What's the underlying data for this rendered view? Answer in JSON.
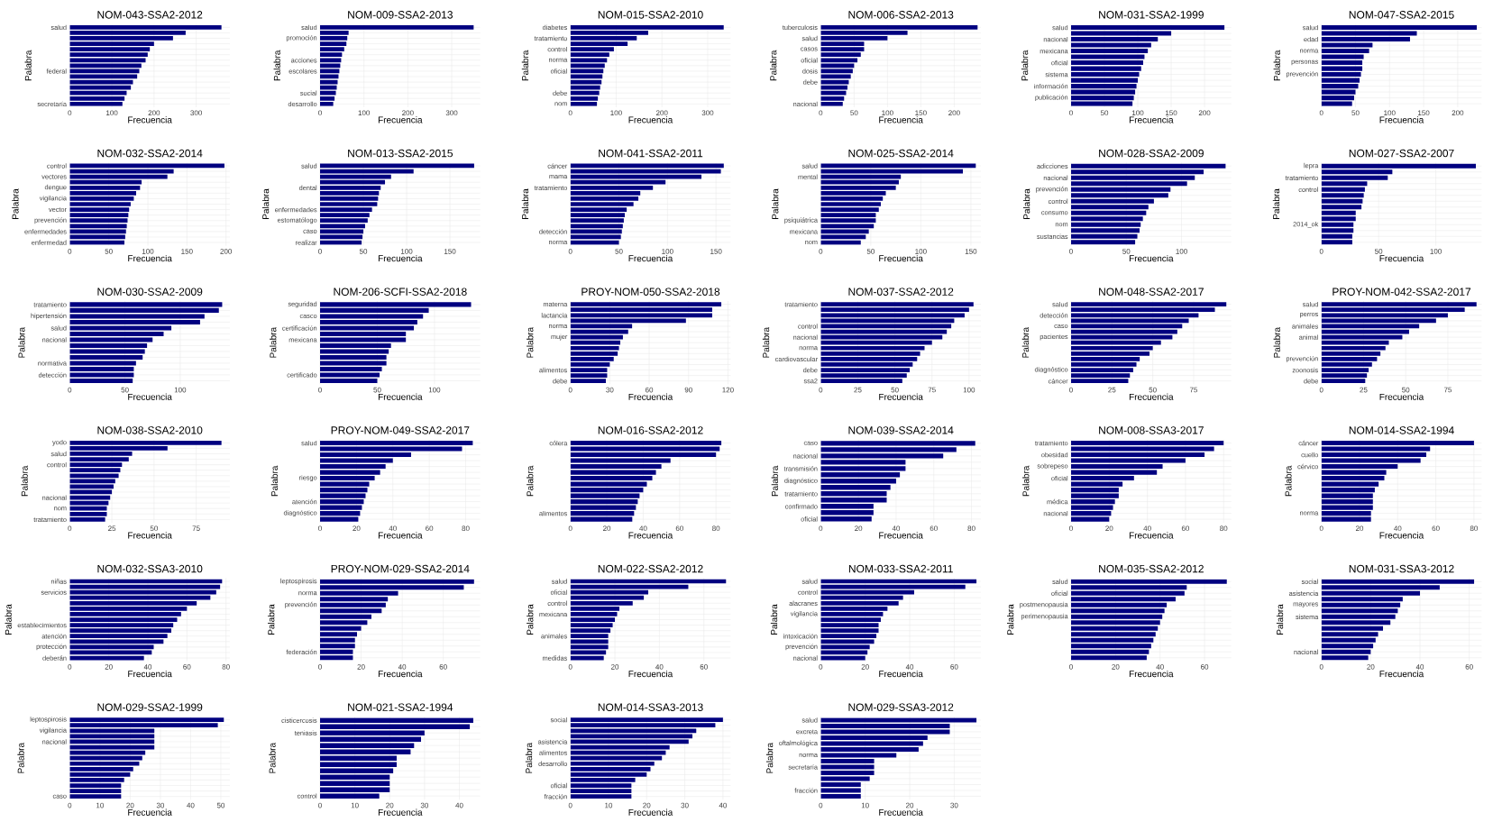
{
  "chart_data": [
    {
      "type": "bar",
      "orientation": "horizontal",
      "title": "NOM-043-SSA2-2012",
      "xlabel": "Frecuencia",
      "ylabel": "Palabra",
      "color": "#000080",
      "grid": true,
      "xlim": [
        0,
        380
      ],
      "xticks": [
        0,
        100,
        200,
        300
      ],
      "categories": [
        "salud",
        null,
        null,
        null,
        null,
        null,
        null,
        null,
        "federal",
        null,
        null,
        null,
        null,
        null,
        "secretaría"
      ],
      "values": [
        360,
        275,
        245,
        200,
        190,
        185,
        180,
        170,
        165,
        160,
        150,
        145,
        135,
        130,
        125
      ]
    },
    {
      "type": "bar",
      "orientation": "horizontal",
      "title": "NOM-009-SSA2-2013",
      "xlabel": "Frecuencia",
      "ylabel": "Palabra",
      "color": "#000080",
      "grid": true,
      "xlim": [
        0,
        365
      ],
      "xticks": [
        0,
        100,
        200,
        300
      ],
      "categories": [
        "salud",
        null,
        "promoción",
        null,
        null,
        null,
        "acciones",
        null,
        "escolares",
        null,
        null,
        null,
        "social",
        null,
        "desarrollo"
      ],
      "values": [
        350,
        65,
        62,
        60,
        55,
        50,
        48,
        46,
        44,
        42,
        40,
        38,
        36,
        33,
        30
      ]
    },
    {
      "type": "bar",
      "orientation": "horizontal",
      "title": "NOM-015-SSA2-2010",
      "xlabel": "Frecuencia",
      "ylabel": "Palabra",
      "color": "#000080",
      "grid": true,
      "xlim": [
        0,
        350
      ],
      "xticks": [
        0,
        100,
        200,
        300
      ],
      "categories": [
        "diabetes",
        null,
        "tratamiento",
        null,
        "control",
        null,
        "norma",
        null,
        "oficial",
        null,
        null,
        null,
        "debe",
        null,
        "nom"
      ],
      "values": [
        335,
        170,
        145,
        125,
        95,
        85,
        80,
        75,
        72,
        70,
        68,
        65,
        63,
        60,
        58
      ]
    },
    {
      "type": "bar",
      "orientation": "horizontal",
      "title": "NOM-006-SSA2-2013",
      "xlabel": "Frecuencia",
      "ylabel": "Palabra",
      "color": "#000080",
      "grid": true,
      "xlim": [
        0,
        240
      ],
      "xticks": [
        0,
        50,
        100,
        150,
        200
      ],
      "categories": [
        "tuberculosis",
        null,
        "salud",
        null,
        "casos",
        null,
        "oficial",
        null,
        "dosis",
        null,
        "debe",
        null,
        null,
        null,
        "nacional"
      ],
      "values": [
        235,
        130,
        100,
        65,
        65,
        60,
        55,
        50,
        48,
        45,
        42,
        40,
        38,
        35,
        33
      ]
    },
    {
      "type": "bar",
      "orientation": "horizontal",
      "title": "NOM-031-SSA2-1999",
      "xlabel": "Frecuencia",
      "ylabel": "Palabra",
      "color": "#000080",
      "grid": true,
      "xlim": [
        0,
        240
      ],
      "xticks": [
        0,
        50,
        100,
        150,
        200
      ],
      "categories": [
        "salud",
        null,
        "nacional",
        null,
        "mexicana",
        null,
        "oficial",
        null,
        "sistema",
        null,
        "información",
        null,
        "publicación",
        null
      ],
      "values": [
        230,
        150,
        130,
        120,
        115,
        110,
        108,
        105,
        102,
        100,
        98,
        96,
        94,
        92
      ]
    },
    {
      "type": "bar",
      "orientation": "horizontal",
      "title": "NOM-047-SSA2-2015",
      "xlabel": "Frecuencia",
      "ylabel": "Palabra",
      "color": "#000080",
      "grid": true,
      "xlim": [
        0,
        235
      ],
      "xticks": [
        0,
        50,
        100,
        150,
        200
      ],
      "categories": [
        "salud",
        null,
        "edad",
        null,
        "norma",
        null,
        "personas",
        null,
        "prevención",
        null,
        null,
        null,
        null,
        null
      ],
      "values": [
        228,
        140,
        130,
        75,
        70,
        62,
        60,
        60,
        58,
        56,
        54,
        50,
        48,
        45
      ]
    },
    {
      "type": "bar",
      "orientation": "horizontal",
      "title": "NOM-032-SSA2-2014",
      "xlabel": "Frecuencia",
      "ylabel": "Palabra",
      "color": "#000080",
      "grid": true,
      "xlim": [
        0,
        205
      ],
      "xticks": [
        0,
        50,
        100,
        150,
        200
      ],
      "categories": [
        "control",
        null,
        "vectores",
        null,
        "dengue",
        null,
        "vigilancia",
        null,
        "vector",
        null,
        "prevención",
        null,
        "enfermedades",
        null,
        "enfermedad"
      ],
      "values": [
        198,
        133,
        125,
        92,
        90,
        85,
        82,
        78,
        76,
        75,
        74,
        73,
        72,
        71,
        70
      ]
    },
    {
      "type": "bar",
      "orientation": "horizontal",
      "title": "NOM-013-SSA2-2015",
      "xlabel": "Frecuencia",
      "ylabel": "Palabra",
      "color": "#000080",
      "grid": true,
      "xlim": [
        0,
        185
      ],
      "xticks": [
        0,
        50,
        100,
        150
      ],
      "categories": [
        "salud",
        null,
        null,
        null,
        "dental",
        null,
        null,
        null,
        "enfermedades",
        null,
        "estomatólogo",
        null,
        "caso",
        null,
        "realizar"
      ],
      "values": [
        178,
        108,
        82,
        75,
        70,
        68,
        67,
        66,
        60,
        57,
        55,
        52,
        50,
        49,
        48
      ]
    },
    {
      "type": "bar",
      "orientation": "horizontal",
      "title": "NOM-041-SSA2-2011",
      "xlabel": "Frecuencia",
      "ylabel": "Palabra",
      "color": "#000080",
      "grid": true,
      "xlim": [
        0,
        165
      ],
      "xticks": [
        0,
        50,
        100,
        150
      ],
      "categories": [
        "cáncer",
        null,
        "mama",
        null,
        "tratamiento",
        null,
        null,
        null,
        null,
        null,
        null,
        null,
        "detección",
        null,
        "norma"
      ],
      "values": [
        158,
        155,
        135,
        98,
        85,
        72,
        70,
        65,
        58,
        56,
        55,
        54,
        53,
        52,
        50
      ]
    },
    {
      "type": "bar",
      "orientation": "horizontal",
      "title": "NOM-025-SSA2-2014",
      "xlabel": "Frecuencia",
      "ylabel": "Palabra",
      "color": "#000080",
      "grid": true,
      "xlim": [
        0,
        160
      ],
      "xticks": [
        0,
        50,
        100,
        150
      ],
      "categories": [
        "salud",
        null,
        "mental",
        null,
        null,
        null,
        null,
        null,
        null,
        null,
        "psiquiátrica",
        null,
        "mexicana",
        null,
        "nom"
      ],
      "values": [
        155,
        142,
        80,
        78,
        75,
        65,
        62,
        60,
        58,
        55,
        55,
        53,
        48,
        45,
        40
      ]
    },
    {
      "type": "bar",
      "orientation": "horizontal",
      "title": "NOM-028-SSA2-2009",
      "xlabel": "Frecuencia",
      "ylabel": "Palabra",
      "color": "#000080",
      "grid": true,
      "xlim": [
        0,
        145
      ],
      "xticks": [
        0,
        50,
        100
      ],
      "categories": [
        "adicciones",
        null,
        "nacional",
        null,
        "prevención",
        null,
        "control",
        null,
        "consumo",
        null,
        "nom",
        null,
        "sustancias",
        null
      ],
      "values": [
        140,
        120,
        112,
        105,
        90,
        88,
        75,
        70,
        68,
        65,
        63,
        62,
        60,
        58
      ]
    },
    {
      "type": "bar",
      "orientation": "horizontal",
      "title": "NOM-027-SSA2-2007",
      "xlabel": "Frecuencia",
      "ylabel": "Palabra",
      "color": "#000080",
      "grid": true,
      "xlim": [
        0,
        140
      ],
      "xticks": [
        0,
        50,
        100
      ],
      "categories": [
        "lepra",
        null,
        "tratamiento",
        null,
        "control",
        null,
        null,
        null,
        null,
        null,
        "2014_ok",
        null,
        null,
        null
      ],
      "values": [
        135,
        62,
        58,
        40,
        38,
        37,
        36,
        35,
        30,
        30,
        28,
        28,
        27,
        27
      ]
    },
    {
      "type": "bar",
      "orientation": "horizontal",
      "title": "NOM-030-SSA2-2009",
      "xlabel": "Frecuencia",
      "ylabel": "Palabra",
      "color": "#000080",
      "grid": true,
      "xlim": [
        0,
        145
      ],
      "xticks": [
        0,
        50,
        100
      ],
      "categories": [
        "tratamiento",
        null,
        "hipertensión",
        null,
        "salud",
        null,
        "nacional",
        null,
        null,
        null,
        "normativa",
        null,
        "detección",
        null
      ],
      "values": [
        138,
        135,
        122,
        118,
        92,
        85,
        75,
        70,
        68,
        66,
        60,
        58,
        58,
        57
      ]
    },
    {
      "type": "bar",
      "orientation": "horizontal",
      "title": "NOM-206-SCFI-SSA2-2018",
      "xlabel": "Frecuencia",
      "ylabel": "Palabra",
      "color": "#000080",
      "grid": true,
      "xlim": [
        0,
        140
      ],
      "xticks": [
        0,
        50,
        100
      ],
      "categories": [
        "seguridad",
        null,
        "casco",
        null,
        "certificación",
        null,
        "mexicana",
        null,
        null,
        null,
        null,
        null,
        "certificado",
        null
      ],
      "values": [
        132,
        95,
        90,
        85,
        82,
        75,
        75,
        62,
        60,
        58,
        58,
        54,
        52,
        50
      ]
    },
    {
      "type": "bar",
      "orientation": "horizontal",
      "title": "PROY-NOM-050-SSA2-2018",
      "xlabel": "Frecuencia",
      "ylabel": "Palabra",
      "color": "#000080",
      "grid": true,
      "xlim": [
        0,
        122
      ],
      "xticks": [
        0,
        30,
        60,
        90,
        120
      ],
      "categories": [
        "materna",
        null,
        "lactancia",
        null,
        "norma",
        null,
        "mujer",
        null,
        null,
        null,
        null,
        null,
        "alimentos",
        null,
        "debe"
      ],
      "values": [
        115,
        108,
        108,
        88,
        47,
        44,
        40,
        38,
        37,
        36,
        33,
        30,
        28,
        28,
        27
      ]
    },
    {
      "type": "bar",
      "orientation": "horizontal",
      "title": "NOM-037-SSA2-2012",
      "xlabel": "Frecuencia",
      "ylabel": "Palabra",
      "color": "#000080",
      "grid": true,
      "xlim": [
        0,
        108
      ],
      "xticks": [
        0,
        25,
        50,
        75,
        100
      ],
      "categories": [
        "tratamiento",
        null,
        null,
        null,
        "control",
        null,
        "nacional",
        null,
        "norma",
        null,
        "cardiovascular",
        null,
        "debe",
        null,
        "ssa2"
      ],
      "values": [
        103,
        100,
        97,
        90,
        88,
        85,
        82,
        75,
        70,
        67,
        65,
        62,
        60,
        58,
        55
      ]
    },
    {
      "type": "bar",
      "orientation": "horizontal",
      "title": "NOM-048-SSA2-2017",
      "xlabel": "Frecuencia",
      "ylabel": "Palabra",
      "color": "#000080",
      "grid": true,
      "xlim": [
        0,
        98
      ],
      "xticks": [
        0,
        25,
        50,
        75
      ],
      "categories": [
        "salud",
        null,
        "detección",
        null,
        "caso",
        null,
        "pacientes",
        null,
        null,
        null,
        null,
        null,
        "diagnóstico",
        null,
        "cáncer"
      ],
      "values": [
        95,
        88,
        78,
        72,
        68,
        65,
        62,
        55,
        50,
        48,
        42,
        40,
        38,
        36,
        35
      ]
    },
    {
      "type": "bar",
      "orientation": "horizontal",
      "title": "PROY-NOM-042-SSA2-2017",
      "xlabel": "Frecuencia",
      "ylabel": "Palabra",
      "color": "#000080",
      "grid": true,
      "xlim": [
        0,
        95
      ],
      "xticks": [
        0,
        25,
        50,
        75
      ],
      "categories": [
        "salud",
        null,
        "perros",
        null,
        "animales",
        null,
        "animal",
        null,
        null,
        null,
        "prevención",
        null,
        "zoonosis",
        null,
        "debe"
      ],
      "values": [
        92,
        85,
        75,
        68,
        58,
        52,
        48,
        40,
        38,
        35,
        33,
        30,
        28,
        27,
        26
      ]
    },
    {
      "type": "bar",
      "orientation": "horizontal",
      "title": "NOM-038-SSA2-2010",
      "xlabel": "Frecuencia",
      "ylabel": "Palabra",
      "color": "#000080",
      "grid": true,
      "xlim": [
        0,
        95
      ],
      "xticks": [
        0,
        25,
        50,
        75
      ],
      "categories": [
        "yodo",
        null,
        "salud",
        null,
        "control",
        null,
        null,
        null,
        null,
        null,
        "nacional",
        null,
        "nom",
        null,
        "tratamiento"
      ],
      "values": [
        90,
        58,
        37,
        35,
        31,
        30,
        29,
        27,
        26,
        25,
        24,
        23,
        22,
        22,
        21
      ]
    },
    {
      "type": "bar",
      "orientation": "horizontal",
      "title": "PROY-NOM-049-SSA2-2017",
      "xlabel": "Frecuencia",
      "ylabel": "Palabra",
      "color": "#000080",
      "grid": true,
      "xlim": [
        0,
        88
      ],
      "xticks": [
        0,
        20,
        40,
        60,
        80
      ],
      "categories": [
        "salud",
        null,
        null,
        null,
        null,
        null,
        "riesgo",
        null,
        null,
        null,
        "atención",
        null,
        "diagnóstico",
        null
      ],
      "values": [
        84,
        78,
        50,
        40,
        36,
        33,
        30,
        27,
        26,
        25,
        24,
        23,
        22,
        21
      ]
    },
    {
      "type": "bar",
      "orientation": "horizontal",
      "title": "NOM-016-SSA2-2012",
      "xlabel": "Frecuencia",
      "ylabel": "Palabra",
      "color": "#000080",
      "grid": true,
      "xlim": [
        0,
        88
      ],
      "xticks": [
        0,
        20,
        40,
        60,
        80
      ],
      "categories": [
        "cólera",
        null,
        null,
        null,
        null,
        null,
        null,
        null,
        null,
        null,
        null,
        null,
        "alimentos",
        null
      ],
      "values": [
        83,
        82,
        80,
        55,
        50,
        47,
        45,
        42,
        40,
        38,
        37,
        36,
        35,
        34
      ]
    },
    {
      "type": "bar",
      "orientation": "horizontal",
      "title": "NOM-039-SSA2-2014",
      "xlabel": "Frecuencia",
      "ylabel": "Palabra",
      "color": "#000080",
      "grid": true,
      "xlim": [
        0,
        85
      ],
      "xticks": [
        0,
        20,
        40,
        60,
        80
      ],
      "categories": [
        "caso",
        null,
        "nacional",
        null,
        "transmisión",
        null,
        "diagnóstico",
        null,
        "tratamiento",
        null,
        "confirmado",
        null,
        "oficial"
      ],
      "values": [
        82,
        72,
        65,
        45,
        45,
        42,
        40,
        37,
        35,
        35,
        28,
        28,
        27
      ]
    },
    {
      "type": "bar",
      "orientation": "horizontal",
      "title": "NOM-008-SSA3-2017",
      "xlabel": "Frecuencia",
      "ylabel": "Palabra",
      "color": "#000080",
      "grid": true,
      "xlim": [
        0,
        84
      ],
      "xticks": [
        0,
        20,
        40,
        60,
        80
      ],
      "categories": [
        "tratamiento",
        null,
        "obesidad",
        null,
        "sobrepeso",
        null,
        "oficial",
        null,
        null,
        null,
        "médica",
        null,
        "nacional",
        null
      ],
      "values": [
        80,
        75,
        70,
        60,
        48,
        45,
        33,
        27,
        25,
        25,
        23,
        22,
        21,
        20
      ]
    },
    {
      "type": "bar",
      "orientation": "horizontal",
      "title": "NOM-014-SSA2-1994",
      "xlabel": "Frecuencia",
      "ylabel": "Palabra",
      "color": "#000080",
      "grid": true,
      "xlim": [
        0,
        84
      ],
      "xticks": [
        0,
        20,
        40,
        60,
        80
      ],
      "categories": [
        "cáncer",
        null,
        "cuello",
        null,
        "cérvico",
        null,
        null,
        null,
        null,
        null,
        null,
        null,
        "norma",
        null
      ],
      "values": [
        80,
        57,
        55,
        52,
        40,
        34,
        33,
        30,
        28,
        27,
        27,
        27,
        26,
        26
      ]
    },
    {
      "type": "bar",
      "orientation": "horizontal",
      "title": "NOM-032-SSA3-2010",
      "xlabel": "Frecuencia",
      "ylabel": "Palabra",
      "color": "#000080",
      "grid": true,
      "xlim": [
        0,
        82
      ],
      "xticks": [
        0,
        20,
        40,
        60,
        80
      ],
      "categories": [
        "niñas",
        null,
        "servicios",
        null,
        null,
        null,
        null,
        null,
        "establecimientos",
        null,
        "atención",
        null,
        "protección",
        null,
        "deberán"
      ],
      "values": [
        78,
        77,
        75,
        72,
        65,
        60,
        57,
        55,
        53,
        52,
        50,
        48,
        43,
        42,
        38
      ]
    },
    {
      "type": "bar",
      "orientation": "horizontal",
      "title": "PROY-NOM-029-SSA2-2014",
      "xlabel": "Frecuencia",
      "ylabel": "Palabra",
      "color": "#000080",
      "grid": true,
      "xlim": [
        0,
        78
      ],
      "xticks": [
        0,
        20,
        40,
        60
      ],
      "categories": [
        "leptospirosis",
        null,
        "norma",
        null,
        "prevención",
        null,
        null,
        null,
        null,
        null,
        null,
        null,
        "federación",
        null
      ],
      "values": [
        75,
        70,
        38,
        33,
        32,
        30,
        25,
        23,
        20,
        18,
        17,
        17,
        16,
        16
      ]
    },
    {
      "type": "bar",
      "orientation": "horizontal",
      "title": "NOM-022-SSA2-2012",
      "xlabel": "Frecuencia",
      "ylabel": "Palabra",
      "color": "#000080",
      "grid": true,
      "xlim": [
        0,
        72
      ],
      "xticks": [
        0,
        20,
        40,
        60
      ],
      "categories": [
        "salud",
        null,
        "oficial",
        null,
        "control",
        null,
        "mexicana",
        null,
        null,
        null,
        "animales",
        null,
        null,
        null,
        "medidas"
      ],
      "values": [
        70,
        53,
        35,
        33,
        28,
        22,
        21,
        20,
        19,
        18,
        17,
        17,
        17,
        16,
        15
      ]
    },
    {
      "type": "bar",
      "orientation": "horizontal",
      "title": "NOM-033-SSA2-2011",
      "xlabel": "Frecuencia",
      "ylabel": "Palabra",
      "color": "#000080",
      "grid": true,
      "xlim": [
        0,
        72
      ],
      "xticks": [
        0,
        20,
        40,
        60
      ],
      "categories": [
        "salud",
        null,
        "control",
        null,
        "alacranes",
        null,
        "vigilancia",
        null,
        null,
        null,
        "intoxicación",
        null,
        "prevención",
        null,
        "nacional"
      ],
      "values": [
        70,
        65,
        42,
        37,
        35,
        30,
        28,
        27,
        26,
        26,
        25,
        24,
        22,
        21,
        20
      ]
    },
    {
      "type": "bar",
      "orientation": "horizontal",
      "title": "NOM-035-SSA2-2012",
      "xlabel": "Frecuencia",
      "ylabel": "Palabra",
      "color": "#000080",
      "grid": true,
      "xlim": [
        0,
        72
      ],
      "xticks": [
        0,
        20,
        40,
        60
      ],
      "categories": [
        "salud",
        null,
        "oficial",
        null,
        "postmenopausia",
        null,
        "perimenopausia",
        null,
        null,
        null,
        null,
        null,
        null,
        null
      ],
      "values": [
        70,
        52,
        51,
        47,
        43,
        42,
        41,
        40,
        39,
        38,
        37,
        36,
        35,
        34
      ]
    },
    {
      "type": "bar",
      "orientation": "horizontal",
      "title": "NOM-031-SSA3-2012",
      "xlabel": "Frecuencia",
      "ylabel": "Palabra",
      "color": "#000080",
      "grid": true,
      "xlim": [
        0,
        65
      ],
      "xticks": [
        0,
        20,
        40,
        60
      ],
      "categories": [
        "social",
        null,
        "asistencia",
        null,
        "mayores",
        null,
        "sistema",
        null,
        null,
        null,
        null,
        null,
        "nacional",
        null
      ],
      "values": [
        62,
        48,
        40,
        33,
        32,
        31,
        30,
        28,
        25,
        23,
        22,
        21,
        20,
        19
      ]
    },
    {
      "type": "bar",
      "orientation": "horizontal",
      "title": "NOM-029-SSA2-1999",
      "xlabel": "Frecuencia",
      "ylabel": "Palabra",
      "color": "#000080",
      "grid": true,
      "xlim": [
        0,
        53
      ],
      "xticks": [
        0,
        10,
        20,
        30,
        40,
        50
      ],
      "categories": [
        "leptospirosis",
        null,
        "vigilancia",
        null,
        "nacional",
        null,
        null,
        null,
        null,
        null,
        null,
        null,
        null,
        null,
        "caso"
      ],
      "values": [
        51,
        49,
        28,
        28,
        28,
        28,
        25,
        24,
        23,
        21,
        20,
        18,
        17,
        17,
        17
      ]
    },
    {
      "type": "bar",
      "orientation": "horizontal",
      "title": "NOM-021-SSA2-1994",
      "xlabel": "Frecuencia",
      "ylabel": "Palabra",
      "color": "#000080",
      "grid": true,
      "xlim": [
        0,
        46
      ],
      "xticks": [
        0,
        10,
        20,
        30,
        40
      ],
      "categories": [
        "cisticercosis",
        null,
        "teniasis",
        null,
        null,
        null,
        null,
        null,
        null,
        null,
        null,
        null,
        "control"
      ],
      "values": [
        44,
        43,
        30,
        29,
        27,
        26,
        22,
        22,
        21,
        20,
        20,
        20,
        17
      ]
    },
    {
      "type": "bar",
      "orientation": "horizontal",
      "title": "NOM-014-SSA3-2013",
      "xlabel": "Frecuencia",
      "ylabel": "Palabra",
      "color": "#000080",
      "grid": true,
      "xlim": [
        0,
        42
      ],
      "xticks": [
        0,
        10,
        20,
        30,
        40
      ],
      "categories": [
        "social",
        null,
        null,
        null,
        "asistencia",
        null,
        "alimentos",
        null,
        "desarrollo",
        null,
        null,
        null,
        "oficial",
        null,
        "fracción"
      ],
      "values": [
        40,
        38,
        33,
        32,
        31,
        26,
        25,
        24,
        22,
        21,
        20,
        17,
        16,
        16,
        16
      ]
    },
    {
      "type": "bar",
      "orientation": "horizontal",
      "title": "NOM-029-SSA3-2012",
      "xlabel": "Frecuencia",
      "ylabel": "Palabra",
      "color": "#000080",
      "grid": true,
      "xlim": [
        0,
        36
      ],
      "xticks": [
        0,
        10,
        20,
        30
      ],
      "categories": [
        "salud",
        null,
        "excreta",
        null,
        "oftalmológica",
        null,
        "norma",
        null,
        "secretaría",
        null,
        null,
        null,
        "fracción",
        null
      ],
      "values": [
        35,
        29,
        29,
        24,
        23,
        22,
        17,
        12,
        12,
        12,
        11,
        9,
        9,
        9
      ]
    }
  ]
}
